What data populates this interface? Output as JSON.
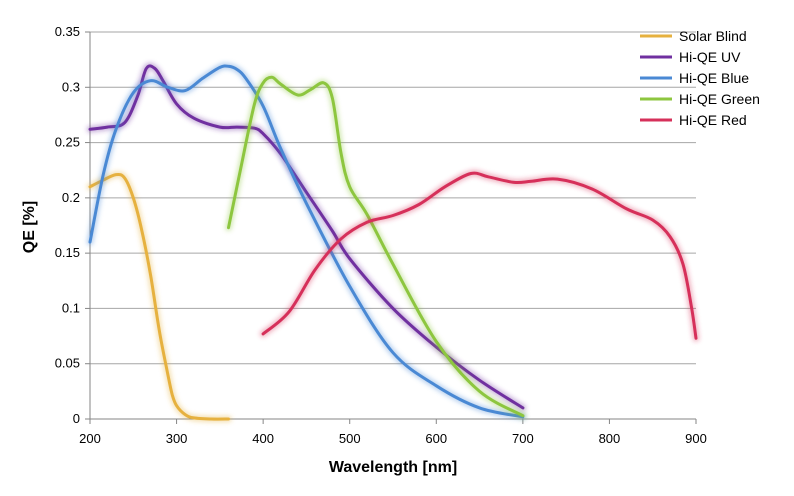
{
  "chart_data": {
    "type": "line",
    "title": "",
    "xlabel": "Wavelength [nm]",
    "ylabel": "QE [%]",
    "xlim": [
      200,
      900
    ],
    "ylim": [
      0,
      0.35
    ],
    "x_ticks": [
      200,
      300,
      400,
      500,
      600,
      700,
      800,
      900
    ],
    "y_ticks": [
      0,
      0.05,
      0.1,
      0.15,
      0.2,
      0.25,
      0.3,
      0.35
    ],
    "x_tick_labels": [
      "200",
      "300",
      "400",
      "500",
      "600",
      "700",
      "800",
      "900"
    ],
    "y_tick_labels": [
      "0",
      "0.05",
      "0.1",
      "0.15",
      "0.2",
      "0.25",
      "0.3",
      "0.35"
    ],
    "grid": "horizontal",
    "legend_position": "right",
    "series": [
      {
        "name": "Solar Blind",
        "color": "#e6b13f",
        "x": [
          200,
          215,
          230,
          240,
          250,
          260,
          270,
          280,
          290,
          295,
          300,
          310,
          320,
          340,
          360
        ],
        "y": [
          0.21,
          0.216,
          0.221,
          0.218,
          0.2,
          0.17,
          0.13,
          0.08,
          0.04,
          0.022,
          0.012,
          0.004,
          0.001,
          0.0,
          0.0
        ]
      },
      {
        "name": "Hi-QE UV",
        "color": "#7030a0",
        "x": [
          200,
          220,
          240,
          255,
          265,
          275,
          285,
          300,
          320,
          350,
          370,
          390,
          400,
          420,
          450,
          480,
          500,
          550,
          600,
          650,
          700
        ],
        "y": [
          0.262,
          0.264,
          0.268,
          0.292,
          0.317,
          0.317,
          0.305,
          0.285,
          0.272,
          0.264,
          0.264,
          0.263,
          0.258,
          0.24,
          0.205,
          0.17,
          0.145,
          0.1,
          0.065,
          0.035,
          0.01
        ]
      },
      {
        "name": "Hi-QE Blue",
        "color": "#4a89d4",
        "x": [
          200,
          215,
          230,
          250,
          270,
          290,
          310,
          330,
          350,
          360,
          370,
          380,
          400,
          420,
          450,
          500,
          550,
          600,
          650,
          700
        ],
        "y": [
          0.16,
          0.22,
          0.262,
          0.295,
          0.306,
          0.3,
          0.297,
          0.308,
          0.318,
          0.319,
          0.316,
          0.308,
          0.283,
          0.245,
          0.195,
          0.12,
          0.06,
          0.03,
          0.01,
          0.002
        ]
      },
      {
        "name": "Hi-QE Green",
        "color": "#8dc63f",
        "x": [
          360,
          375,
          390,
          400,
          410,
          420,
          440,
          455,
          470,
          480,
          490,
          500,
          520,
          550,
          600,
          650,
          700
        ],
        "y": [
          0.173,
          0.23,
          0.285,
          0.304,
          0.309,
          0.303,
          0.293,
          0.298,
          0.304,
          0.29,
          0.24,
          0.21,
          0.185,
          0.14,
          0.07,
          0.025,
          0.003
        ]
      },
      {
        "name": "Hi-QE Red",
        "color": "#d6305a",
        "x": [
          400,
          430,
          460,
          490,
          520,
          550,
          580,
          610,
          640,
          660,
          690,
          710,
          740,
          780,
          820,
          850,
          870,
          885,
          895,
          900
        ],
        "y": [
          0.077,
          0.097,
          0.135,
          0.163,
          0.178,
          0.184,
          0.194,
          0.21,
          0.222,
          0.219,
          0.214,
          0.215,
          0.217,
          0.208,
          0.19,
          0.18,
          0.165,
          0.14,
          0.1,
          0.073
        ]
      }
    ]
  }
}
